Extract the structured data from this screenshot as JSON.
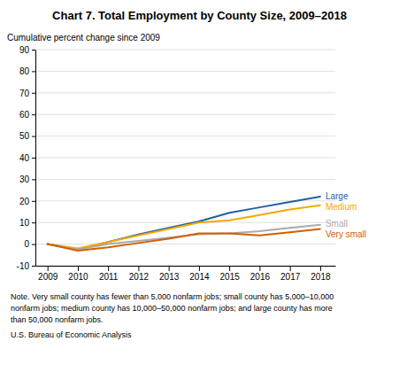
{
  "chart_data": {
    "type": "line",
    "title": "Chart 7. Total Employment by County Size, 2009–2018",
    "y_label": "Cumulative percent change since 2009",
    "x": [
      2009,
      2010,
      2011,
      2012,
      2013,
      2014,
      2015,
      2016,
      2017,
      2018
    ],
    "series": [
      {
        "name": "Large",
        "color": "#1f5fa6",
        "values": [
          0,
          -2.5,
          1.0,
          4.5,
          7.5,
          10.5,
          14.5,
          17.0,
          19.5,
          22.0
        ]
      },
      {
        "name": "Medium",
        "color": "#f5a800",
        "values": [
          0,
          -2.0,
          1.0,
          4.0,
          7.0,
          10.0,
          11.0,
          13.5,
          16.0,
          18.0
        ]
      },
      {
        "name": "Small",
        "color": "#aaaaaa",
        "values": [
          0,
          -2.5,
          0.0,
          1.5,
          3.0,
          4.5,
          5.0,
          6.0,
          7.5,
          9.0
        ]
      },
      {
        "name": "Very small",
        "color": "#d45f00",
        "values": [
          0,
          -3.0,
          -1.5,
          0.5,
          2.5,
          5.0,
          5.0,
          4.0,
          5.5,
          7.0
        ]
      }
    ],
    "xlim": [
      2008.6,
      2018.5
    ],
    "xticks": [
      2009,
      2010,
      2011,
      2012,
      2013,
      2014,
      2015,
      2016,
      2017,
      2018
    ],
    "ylim": [
      -10,
      90
    ],
    "yticks": [
      -10,
      0,
      10,
      20,
      30,
      40,
      50,
      60,
      70,
      80,
      90
    ],
    "grid": true,
    "notes": [
      "Note. Very small county has fewer than 5,000 nonfarm jobs; small county has 5,000–10,000",
      "nonfarm jobs; medium county has 10,000–50,000 nonfarm jobs; and large county has more",
      "than 50,000 nonfarm jobs."
    ],
    "source": "U.S. Bureau of Economic Analysis"
  }
}
